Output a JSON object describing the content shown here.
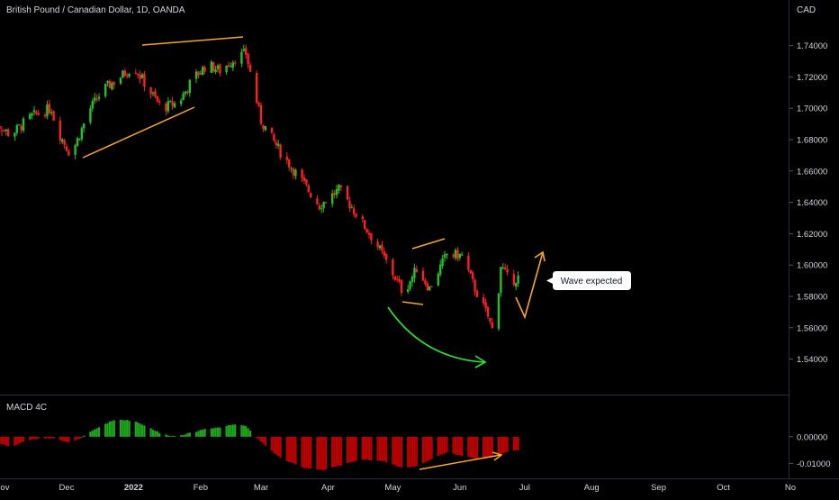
{
  "header": {
    "title": "British Pound / Canadian Dollar, 1D, OANDA"
  },
  "price_axis": {
    "currency": "CAD"
  },
  "macd_panel": {
    "label": "MACD 4C"
  },
  "annotations": {
    "callout": "Wave expected"
  },
  "colors": {
    "background": "#000000",
    "up": "#26c026",
    "down": "#ff1f1f",
    "hist_up": "#1fa81f",
    "hist_down": "#c00000",
    "trendline": "#f5a623",
    "arc": "#2ee62e",
    "text": "#d1d4dc",
    "grid": "#2a2e39"
  },
  "chart_data": [
    {
      "type": "candlestick",
      "title": "British Pound / Canadian Dollar, 1D, OANDA",
      "ylabel": "CAD",
      "ylim": [
        1.5208,
        1.7576
      ],
      "y_ticks": [
        "1.74000",
        "1.72000",
        "1.70000",
        "1.68000",
        "1.66000",
        "1.64000",
        "1.62000",
        "1.60000",
        "1.58000",
        "1.56000",
        "1.54000"
      ],
      "x_ticks": [
        "Nov",
        "Dec",
        "2022",
        "Feb",
        "Mar",
        "Apr",
        "May",
        "Jun",
        "Jul",
        "Aug",
        "Sep",
        "Oct",
        "No"
      ],
      "close_path": [
        [
          "Oct 28",
          1.692
        ],
        [
          "Nov 5",
          1.683
        ],
        [
          "Nov 15",
          1.695
        ],
        [
          "Nov 24",
          1.7
        ],
        [
          "Nov 26",
          1.688
        ],
        [
          "Dec 3",
          1.67
        ],
        [
          "Dec 12",
          1.7
        ],
        [
          "Dec 18",
          1.712
        ],
        [
          "Dec 24",
          1.718
        ],
        [
          "Jan 1",
          1.727
        ],
        [
          "Jan 8",
          1.712
        ],
        [
          "Jan 14",
          1.7
        ],
        [
          "Jan 22",
          1.704
        ],
        [
          "Jan 28",
          1.718
        ],
        [
          "Feb 4",
          1.728
        ],
        [
          "Feb 10",
          1.724
        ],
        [
          "Feb 18",
          1.733
        ],
        [
          "Feb 22",
          1.735
        ],
        [
          "Mar 1",
          1.692
        ],
        [
          "Mar 10",
          1.672
        ],
        [
          "Mar 18",
          1.657
        ],
        [
          "Mar 28",
          1.638
        ],
        [
          "Apr 6",
          1.648
        ],
        [
          "Apr 12",
          1.637
        ],
        [
          "Apr 24",
          1.612
        ],
        [
          "Apr 30",
          1.597
        ],
        [
          "May 6",
          1.582
        ],
        [
          "May 12",
          1.598
        ],
        [
          "May 18",
          1.585
        ],
        [
          "May 26",
          1.607
        ],
        [
          "Jun 2",
          1.606
        ],
        [
          "Jun 8",
          1.585
        ],
        [
          "Jun 14",
          1.567
        ],
        [
          "Jun 17",
          1.555
        ],
        [
          "Jun 20",
          1.6
        ],
        [
          "Jun 24",
          1.589
        ],
        [
          "Jun 28",
          1.592
        ]
      ],
      "macd_histogram": {
        "ylim": [
          -0.0156,
          0.0158
        ],
        "y_ticks": [
          "0.00000",
          "-0.01000"
        ],
        "path": [
          [
            "Oct 28",
            -0.0012
          ],
          [
            "Nov 5",
            -0.004
          ],
          [
            "Nov 12",
            -0.0015
          ],
          [
            "Nov 20",
            -0.0005
          ],
          [
            "Nov 26",
            -0.0005
          ],
          [
            "Dec 3",
            -0.0025
          ],
          [
            "Dec 10",
            0.0008
          ],
          [
            "Dec 18",
            0.0045
          ],
          [
            "Dec 24",
            0.0065
          ],
          [
            "Jan 1",
            0.006
          ],
          [
            "Jan 8",
            0.0036
          ],
          [
            "Jan 14",
            0.001
          ],
          [
            "Jan 20",
            0.0002
          ],
          [
            "Jan 28",
            0.0015
          ],
          [
            "Feb 4",
            0.0032
          ],
          [
            "Feb 10",
            0.0035
          ],
          [
            "Feb 18",
            0.005
          ],
          [
            "Feb 22",
            0.004
          ],
          [
            "Mar 1",
            -0.002
          ],
          [
            "Mar 10",
            -0.008
          ],
          [
            "Mar 20",
            -0.0115
          ],
          [
            "Mar 30",
            -0.0125
          ],
          [
            "Apr 6",
            -0.011
          ],
          [
            "Apr 16",
            -0.0085
          ],
          [
            "Apr 26",
            -0.009
          ],
          [
            "May 6",
            -0.0118
          ],
          [
            "May 12",
            -0.011
          ],
          [
            "May 22",
            -0.0072
          ],
          [
            "May 26",
            -0.0058
          ],
          [
            "Jun 2",
            -0.0072
          ],
          [
            "Jun 10",
            -0.0085
          ],
          [
            "Jun 16",
            -0.0078
          ],
          [
            "Jun 22",
            -0.006
          ],
          [
            "Jun 28",
            -0.005
          ]
        ]
      }
    }
  ]
}
